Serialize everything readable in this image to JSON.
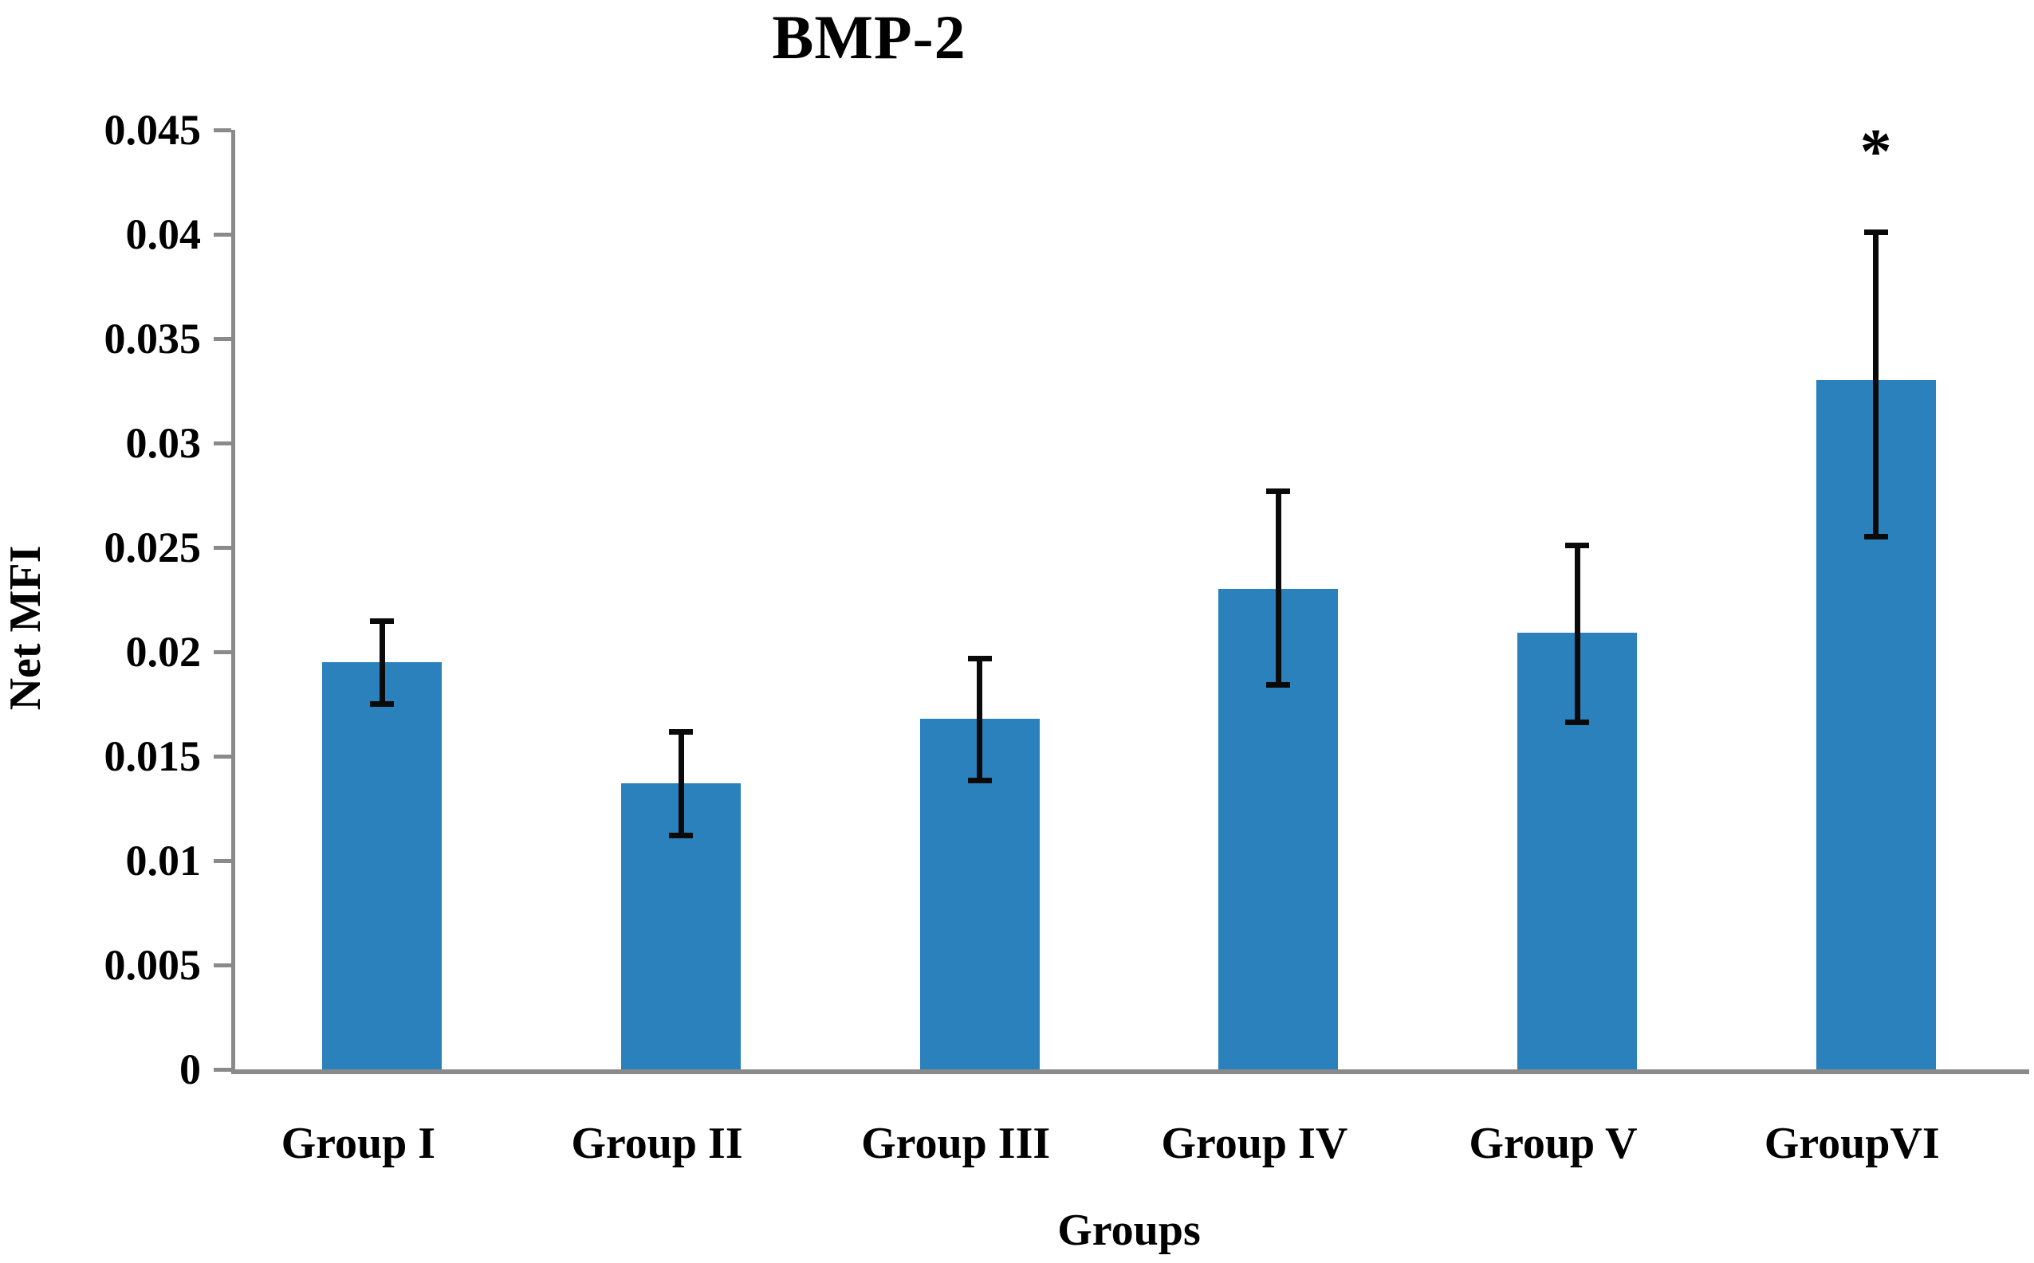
{
  "chart_data": {
    "type": "bar",
    "title": "BMP-2",
    "xlabel": "Groups",
    "ylabel": "Net MFI",
    "categories": [
      "Group I",
      "Group II",
      "Group III",
      "Group IV",
      "Group V",
      "GroupVI"
    ],
    "values": [
      0.0195,
      0.0137,
      0.0168,
      0.023,
      0.0209,
      0.033
    ],
    "error_low": [
      0.0175,
      0.0112,
      0.0138,
      0.0184,
      0.0166,
      0.0255
    ],
    "error_high": [
      0.0215,
      0.0162,
      0.0197,
      0.0277,
      0.0251,
      0.0401
    ],
    "significance": [
      "",
      "",
      "",
      "",
      "",
      "*"
    ],
    "ylim": [
      0,
      0.045
    ],
    "ytick_labels": [
      "0",
      "0.005",
      "0.01",
      "0.015",
      "0.02",
      "0.025",
      "0.03",
      "0.035",
      "0.04",
      "0.045"
    ],
    "ytick_step": 0.005,
    "bar_color": "#2A81BC",
    "error_color": "#0a0a0a",
    "axis_color": "#8A8A8A",
    "grid": false,
    "legend": "none"
  }
}
